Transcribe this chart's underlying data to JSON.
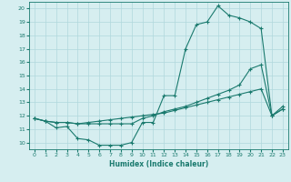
{
  "title": "",
  "xlabel": "Humidex (Indice chaleur)",
  "bg_color": "#d6eef0",
  "grid_color": "#b0d8dc",
  "line_color": "#1a7a6e",
  "xlim": [
    -0.5,
    23.5
  ],
  "ylim": [
    9.5,
    20.5
  ],
  "yticks": [
    10,
    11,
    12,
    13,
    14,
    15,
    16,
    17,
    18,
    19,
    20
  ],
  "xticks": [
    0,
    1,
    2,
    3,
    4,
    5,
    6,
    7,
    8,
    9,
    10,
    11,
    12,
    13,
    14,
    15,
    16,
    17,
    18,
    19,
    20,
    21,
    22,
    23
  ],
  "line1_x": [
    0,
    1,
    2,
    3,
    4,
    5,
    6,
    7,
    8,
    9,
    10,
    11,
    12,
    13,
    14,
    15,
    16,
    17,
    18,
    19,
    20,
    21,
    22,
    23
  ],
  "line1_y": [
    11.8,
    11.6,
    11.1,
    11.2,
    10.3,
    10.2,
    9.8,
    9.8,
    9.8,
    10.0,
    11.5,
    11.5,
    13.5,
    13.5,
    17.0,
    18.8,
    19.0,
    20.2,
    19.5,
    19.3,
    19.0,
    18.5,
    12.0,
    12.7
  ],
  "line2_x": [
    0,
    1,
    2,
    3,
    4,
    5,
    6,
    7,
    8,
    9,
    10,
    11,
    12,
    13,
    14,
    15,
    16,
    17,
    18,
    19,
    20,
    21,
    22,
    23
  ],
  "line2_y": [
    11.8,
    11.6,
    11.5,
    11.5,
    11.4,
    11.5,
    11.6,
    11.7,
    11.8,
    11.9,
    12.0,
    12.1,
    12.2,
    12.4,
    12.6,
    12.8,
    13.0,
    13.2,
    13.4,
    13.6,
    13.8,
    14.0,
    12.0,
    12.5
  ],
  "line3_x": [
    0,
    1,
    2,
    3,
    4,
    5,
    6,
    7,
    8,
    9,
    10,
    11,
    12,
    13,
    14,
    15,
    16,
    17,
    18,
    19,
    20,
    21,
    22,
    23
  ],
  "line3_y": [
    11.8,
    11.6,
    11.5,
    11.5,
    11.4,
    11.4,
    11.4,
    11.4,
    11.4,
    11.4,
    11.8,
    12.0,
    12.3,
    12.5,
    12.7,
    13.0,
    13.3,
    13.6,
    13.9,
    14.3,
    15.5,
    15.8,
    12.0,
    12.5
  ]
}
